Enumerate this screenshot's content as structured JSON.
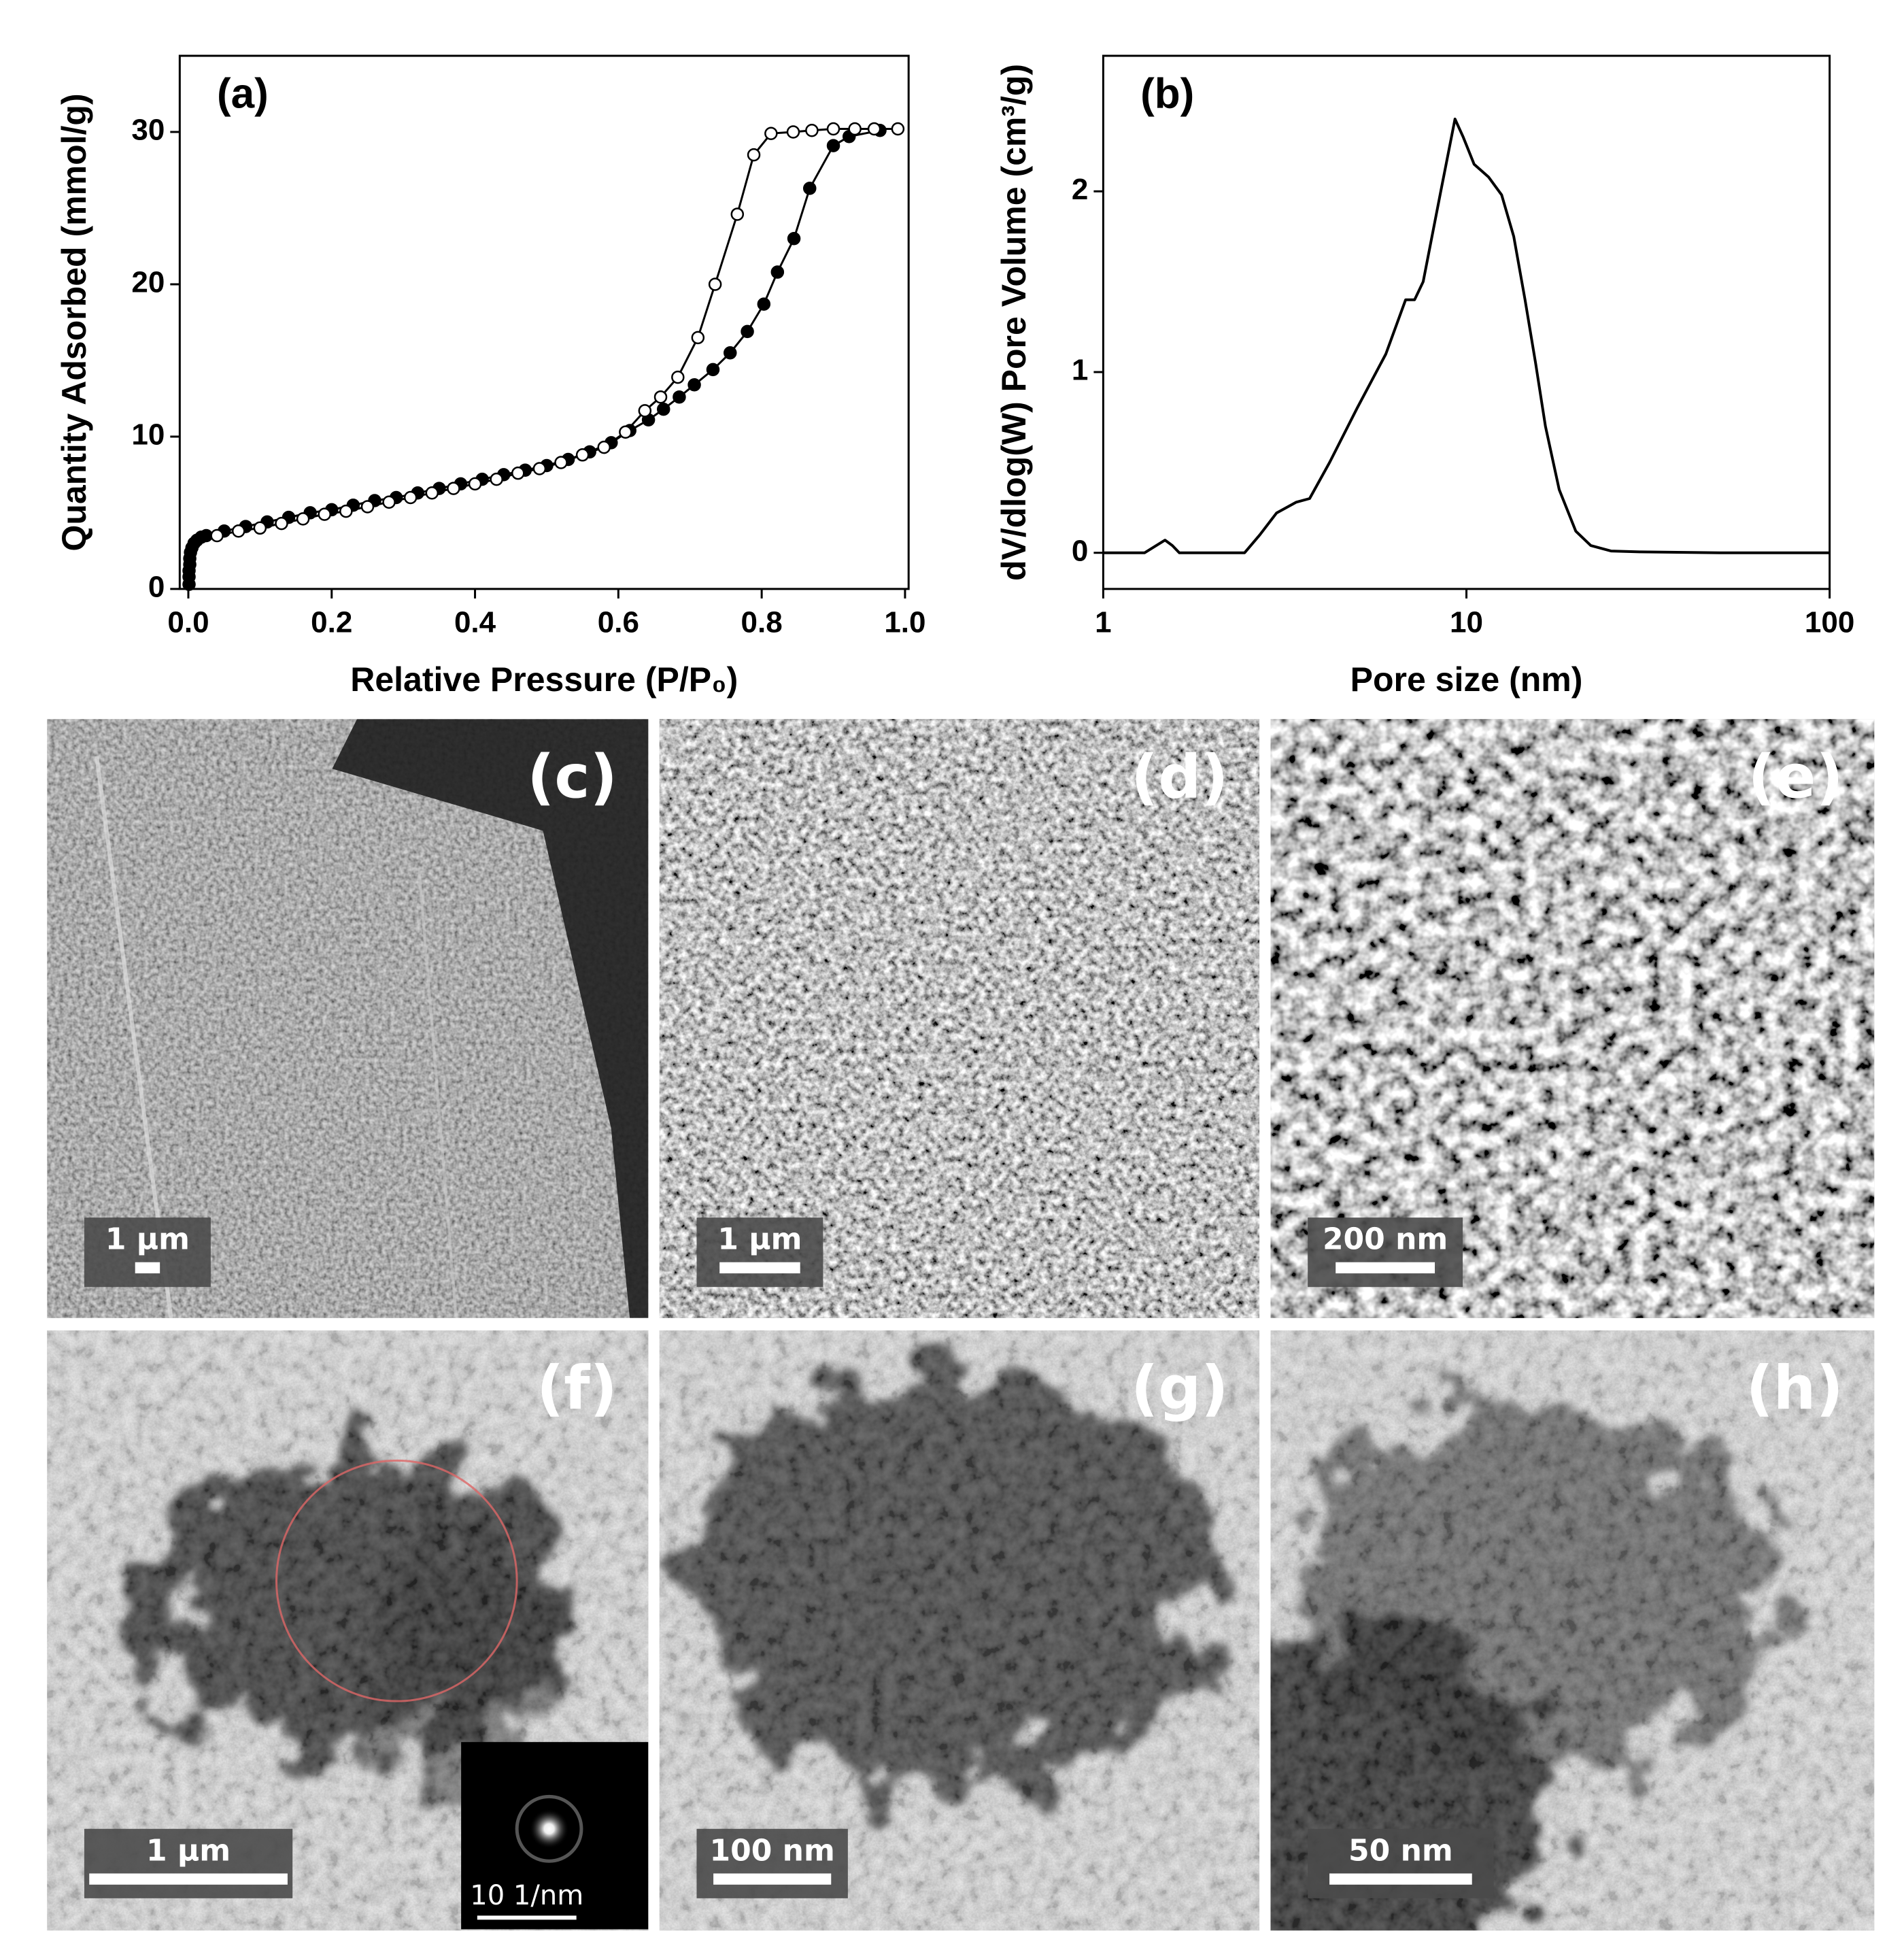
{
  "chart_data": [
    {
      "type": "line",
      "annotation": "(a)",
      "x_label": "Relative Pressure (P/P₀)",
      "y_label": "Quantity Adsorbed (mmol/g)",
      "xlim": [
        -0.012,
        1.005
      ],
      "ylim": [
        0,
        35
      ],
      "xticks": [
        {
          "value": 0,
          "label": "0.0"
        },
        0.2,
        0.4,
        0.6,
        0.8,
        {
          "value": 1,
          "label": "1.0"
        }
      ],
      "yticks": [
        0,
        10,
        20,
        30
      ],
      "markers": true,
      "series": [
        {
          "color": "#000000",
          "marker_fill": "#000000",
          "x": [
            0.001,
            0.001,
            0.001,
            0.002,
            0.002,
            0.003,
            0.005,
            0.008,
            0.012,
            0.018,
            0.025,
            0.05,
            0.08,
            0.11,
            0.14,
            0.17,
            0.2,
            0.23,
            0.26,
            0.29,
            0.32,
            0.35,
            0.38,
            0.41,
            0.44,
            0.47,
            0.5,
            0.53,
            0.56,
            0.59,
            0.616,
            0.642,
            0.663,
            0.685,
            0.706,
            0.732,
            0.756,
            0.78,
            0.803,
            0.822,
            0.845,
            0.867,
            0.9,
            0.922,
            0.965
          ],
          "values": [
            0.3,
            0.8,
            1.2,
            1.6,
            2.0,
            2.4,
            2.7,
            3.0,
            3.2,
            3.4,
            3.5,
            3.8,
            4.1,
            4.4,
            4.7,
            5.0,
            5.2,
            5.5,
            5.8,
            6.0,
            6.3,
            6.6,
            6.9,
            7.2,
            7.5,
            7.8,
            8.1,
            8.5,
            9.0,
            9.6,
            10.4,
            11.1,
            11.8,
            12.6,
            13.4,
            14.4,
            15.5,
            16.9,
            18.7,
            20.8,
            23.0,
            26.3,
            29.1,
            29.7,
            30.1
          ]
        },
        {
          "color": "#000000",
          "marker_fill": "#ffffff",
          "x": [
            0.99,
            0.957,
            0.93,
            0.9,
            0.87,
            0.844,
            0.813,
            0.789,
            0.766,
            0.735,
            0.711,
            0.683,
            0.659,
            0.637,
            0.61,
            0.58,
            0.55,
            0.52,
            0.49,
            0.46,
            0.43,
            0.4,
            0.37,
            0.34,
            0.31,
            0.28,
            0.25,
            0.22,
            0.19,
            0.16,
            0.13,
            0.1,
            0.07,
            0.04
          ],
          "values": [
            30.2,
            30.2,
            30.2,
            30.2,
            30.1,
            30.0,
            29.9,
            28.5,
            24.6,
            20.0,
            16.5,
            13.9,
            12.6,
            11.7,
            10.3,
            9.3,
            8.8,
            8.3,
            7.9,
            7.6,
            7.2,
            6.9,
            6.6,
            6.3,
            6.0,
            5.7,
            5.4,
            5.1,
            4.9,
            4.6,
            4.3,
            4.0,
            3.8,
            3.5
          ]
        }
      ]
    },
    {
      "type": "line",
      "annotation": "(b)",
      "x_label": "Pore size (nm)",
      "y_label": "dV/dlog(W) Pore Volume (cm³/g)",
      "xlog": true,
      "xlim": [
        1,
        100
      ],
      "ylim": [
        -0.2,
        2.75
      ],
      "xticks": [
        1,
        10,
        100
      ],
      "yticks": [
        0,
        1,
        2
      ],
      "markers": false,
      "series": [
        {
          "color": "#000000",
          "x": [
            1,
            1.3,
            1.4,
            1.48,
            1.55,
            1.62,
            2,
            2.45,
            2.7,
            3,
            3.4,
            3.7,
            4.2,
            5,
            6,
            6.8,
            7.2,
            7.6,
            8.5,
            9.3,
            9.8,
            10.5,
            11.5,
            12.5,
            13.5,
            14.5,
            15.5,
            16.5,
            18,
            20,
            22,
            25,
            30,
            50,
            100
          ],
          "values": [
            0,
            0,
            0.04,
            0.07,
            0.04,
            0,
            0,
            0,
            0.1,
            0.22,
            0.28,
            0.3,
            0.5,
            0.8,
            1.1,
            1.4,
            1.4,
            1.5,
            2.0,
            2.4,
            2.3,
            2.15,
            2.08,
            1.98,
            1.75,
            1.4,
            1.05,
            0.7,
            0.35,
            0.12,
            0.04,
            0.01,
            0.005,
            0,
            0
          ]
        }
      ]
    }
  ],
  "panels": [
    {
      "label": "(c)",
      "scale_bar": "1 µm"
    },
    {
      "label": "(d)",
      "scale_bar": "1 µm"
    },
    {
      "label": "(e)",
      "scale_bar": "200 nm"
    },
    {
      "label": "(f)",
      "scale_bar": "1 µm",
      "inset_scale_bar": "10 1/nm"
    },
    {
      "label": "(g)",
      "scale_bar": "100 nm"
    },
    {
      "label": "(h)",
      "scale_bar": "50 nm"
    }
  ]
}
